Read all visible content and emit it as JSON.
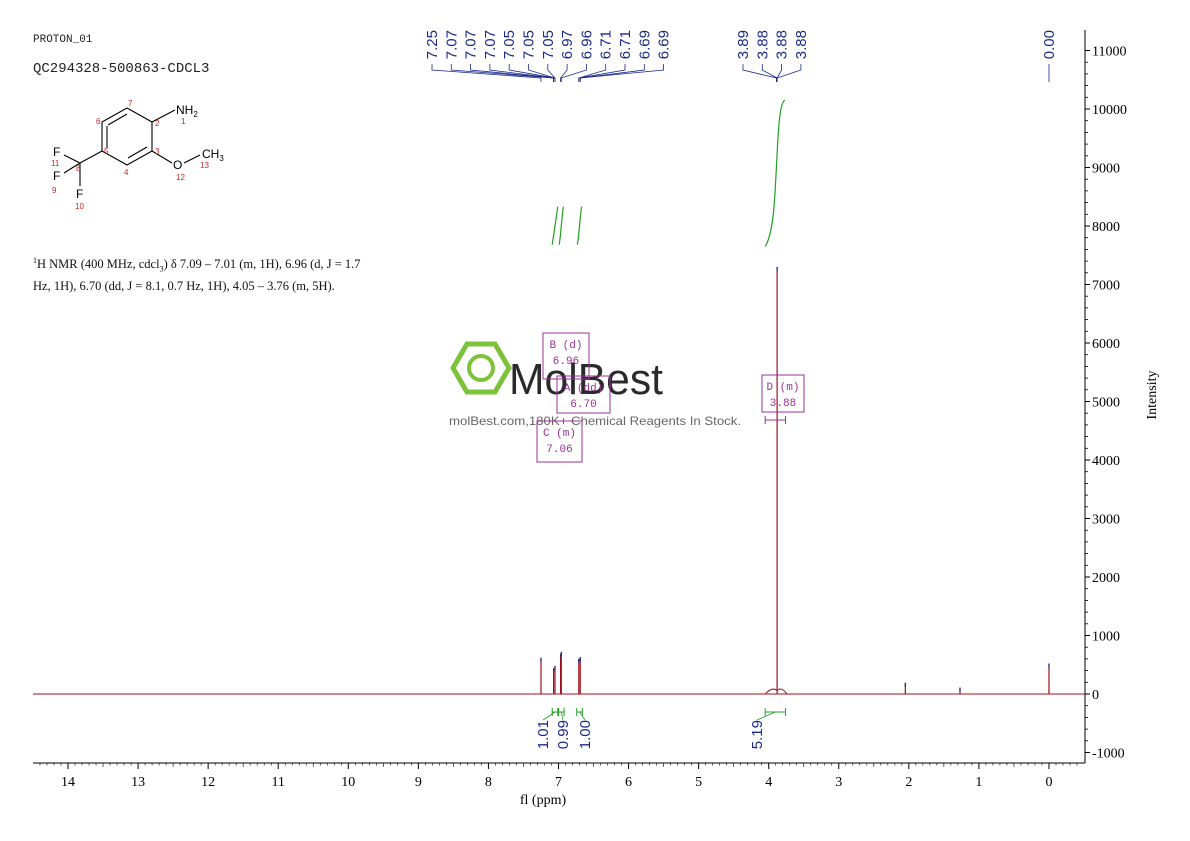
{
  "header": {
    "experiment": "PROTON_01",
    "sample_id": "QC294328-500863-CDCL3"
  },
  "structure": {
    "amine_label": "NH",
    "amine_subscript": "2",
    "methyl_label": "CH",
    "methyl_subscript": "3",
    "oxygen_label": "O",
    "fluorine_label": "F",
    "atom_numbers": [
      "1",
      "2",
      "3",
      "4",
      "5",
      "6",
      "7",
      "8",
      "9",
      "10",
      "11",
      "12",
      "13"
    ]
  },
  "nmr_description": {
    "nucleus_sup": "1",
    "text": "H NMR (400 MHz, cdcl",
    "solvent_sub": "3",
    "rest": ") δ 7.09 – 7.01 (m, 1H), 6.96 (d, J = 1.7 Hz, 1H), 6.70 (dd, J = 8.1, 0.7 Hz, 1H), 4.05 – 3.76 (m, 5H)."
  },
  "watermark": {
    "brand": "MolBest",
    "tagline": "molBest.com,180K+ Chemical Reagents In Stock."
  },
  "chart_data": {
    "type": "line",
    "xlabel": "fl (ppm)",
    "ylabel": "Intensity",
    "xlim": [
      14.5,
      -0.45
    ],
    "ylim": [
      -1100,
      11300
    ],
    "x_ticks": [
      14,
      13,
      12,
      11,
      10,
      9,
      8,
      7,
      6,
      5,
      4,
      3,
      2,
      1,
      0
    ],
    "y_ticks": [
      11000,
      10000,
      9000,
      8000,
      7000,
      6000,
      5000,
      4000,
      3000,
      2000,
      1000,
      0,
      -1000
    ],
    "peaks": [
      {
        "ppm": 7.25,
        "intensity": 620
      },
      {
        "ppm": 7.07,
        "intensity": 440
      },
      {
        "ppm": 7.05,
        "intensity": 480
      },
      {
        "ppm": 6.97,
        "intensity": 680
      },
      {
        "ppm": 6.96,
        "intensity": 720
      },
      {
        "ppm": 6.71,
        "intensity": 600
      },
      {
        "ppm": 6.69,
        "intensity": 630
      },
      {
        "ppm": 3.88,
        "intensity": 7300
      },
      {
        "ppm": 2.05,
        "intensity": 190
      },
      {
        "ppm": 1.27,
        "intensity": 110
      },
      {
        "ppm": 0.0,
        "intensity": 520
      }
    ],
    "peak_labels": {
      "group1": [
        "7.25",
        "7.07",
        "7.07",
        "7.07",
        "7.05",
        "7.05",
        "7.05",
        "6.97",
        "6.96",
        "6.71",
        "6.71",
        "6.69",
        "6.69"
      ],
      "group2": [
        "3.89",
        "3.88",
        "3.88",
        "3.88"
      ],
      "group3": [
        "0.00"
      ]
    },
    "integrals": [
      {
        "from": 7.09,
        "to": 7.01,
        "value": "1.01"
      },
      {
        "from": 7.0,
        "to": 6.92,
        "value": "0.99"
      },
      {
        "from": 6.74,
        "to": 6.66,
        "value": "1.00"
      },
      {
        "from": 4.05,
        "to": 3.76,
        "value": "5.19"
      }
    ],
    "multiplets": [
      {
        "label": "B (d)",
        "shift": "6.96"
      },
      {
        "label": "A (dd)",
        "shift": "6.70"
      },
      {
        "label": "C (m)",
        "shift": "7.06"
      },
      {
        "label": "D (m)",
        "shift": "3.88"
      }
    ],
    "colors": {
      "spectrum": "#a0101a",
      "peak_label": "#1a2a8c",
      "integral": "#22a022",
      "multiplet": "#993399",
      "watermark": "#7cc23a"
    }
  }
}
